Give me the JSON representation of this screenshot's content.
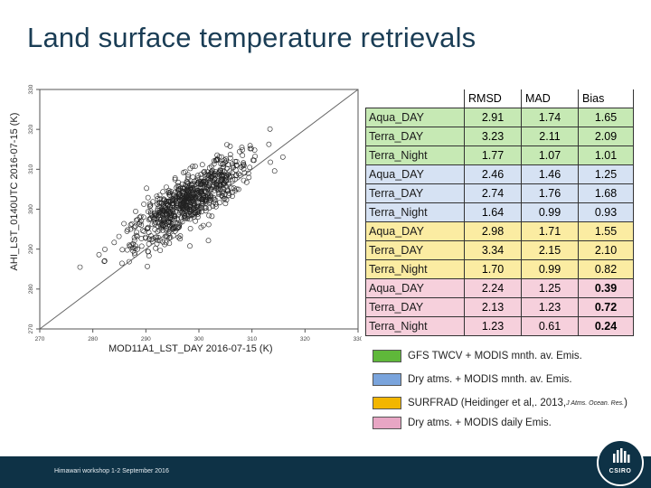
{
  "slide": {
    "title": "Land surface temperature retrievals",
    "footer": "Himawari workshop 1-2 September 2016",
    "logo_text": "CSIRO"
  },
  "chart_data": {
    "type": "scatter",
    "xlabel": "MOD11A1_LST_DAY 2016-07-15 (K)",
    "ylabel": "AHI_LST_0140UTC   2016-07-15 (K)",
    "xlim": [
      270,
      330
    ],
    "ylim": [
      270,
      330
    ],
    "xticks": [
      270,
      280,
      290,
      300,
      310,
      320,
      330
    ],
    "yticks": [
      270,
      280,
      290,
      300,
      310,
      320,
      330
    ],
    "reference_line": "1:1",
    "grid": false,
    "n_points": 800,
    "cloud": {
      "center_x": 298,
      "center_y": 302,
      "major_sd": 7.5,
      "minor_sd": 2.4,
      "angle_deg": 45
    }
  },
  "stats_table": {
    "headers": [
      "RMSD",
      "MAD",
      "Bias"
    ],
    "rows": [
      {
        "name": "Aqua_DAY",
        "rmsd": "2.91",
        "mad": "1.74",
        "bias": "1.65",
        "group": "g",
        "bold_bias": false
      },
      {
        "name": "Terra_DAY",
        "rmsd": "3.23",
        "mad": "2.11",
        "bias": "2.09",
        "group": "g",
        "bold_bias": false
      },
      {
        "name": "Terra_Night",
        "rmsd": "1.77",
        "mad": "1.07",
        "bias": "1.01",
        "group": "g",
        "bold_bias": false
      },
      {
        "name": "Aqua_DAY",
        "rmsd": "2.46",
        "mad": "1.46",
        "bias": "1.25",
        "group": "b",
        "bold_bias": false
      },
      {
        "name": "Terra_DAY",
        "rmsd": "2.74",
        "mad": "1.76",
        "bias": "1.68",
        "group": "b",
        "bold_bias": false
      },
      {
        "name": "Terra_Night",
        "rmsd": "1.64",
        "mad": "0.99",
        "bias": "0.93",
        "group": "b",
        "bold_bias": false
      },
      {
        "name": "Aqua_DAY",
        "rmsd": "2.98",
        "mad": "1.71",
        "bias": "1.55",
        "group": "y",
        "bold_bias": false
      },
      {
        "name": "Terra_DAY",
        "rmsd": "3.34",
        "mad": "2.15",
        "bias": "2.10",
        "group": "y",
        "bold_bias": false
      },
      {
        "name": "Terra_Night",
        "rmsd": "1.70",
        "mad": "0.99",
        "bias": "0.82",
        "group": "y",
        "bold_bias": false
      },
      {
        "name": "Aqua_DAY",
        "rmsd": "2.24",
        "mad": "1.25",
        "bias": "0.39",
        "group": "p",
        "bold_bias": true
      },
      {
        "name": "Terra_DAY",
        "rmsd": "2.13",
        "mad": "1.23",
        "bias": "0.72",
        "group": "p",
        "bold_bias": true
      },
      {
        "name": "Terra_Night",
        "rmsd": "1.23",
        "mad": "0.61",
        "bias": "0.24",
        "group": "p",
        "bold_bias": true
      }
    ]
  },
  "legend": [
    {
      "label": "GFS TWCV + MODIS mnth. av. Emis.",
      "color": "#5fb83a"
    },
    {
      "label": "Dry atms. +  MODIS mnth. av. Emis.",
      "color": "#7aa4dc"
    },
    {
      "label": "SURFRAD (Heidinger et al,. 2013, ",
      "cite": "J Atms. Ocean. Res.",
      "close": ")",
      "color": "#f2b600"
    },
    {
      "label": "Dry atms. +  MODIS daily Emis.",
      "color": "#e8a6c4"
    }
  ]
}
